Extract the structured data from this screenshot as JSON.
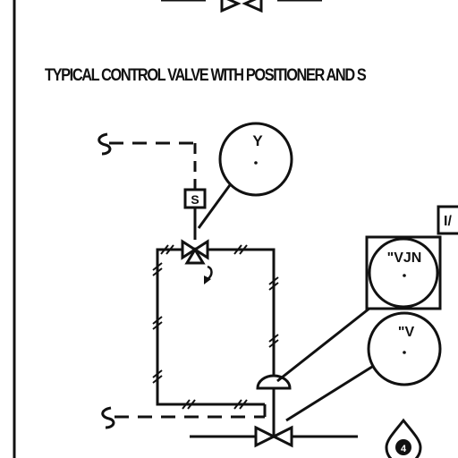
{
  "diagram": {
    "title": "TYPICAL CONTROL VALVE WITH POSITIONER AND S",
    "instruments": {
      "solenoid_bubble": "Y",
      "positioner_bubble": "\"VJN",
      "valve_bubble": "\"V",
      "partial_box": "I/"
    },
    "solenoid_box_label": "S",
    "diamond_marker_label": "4"
  }
}
